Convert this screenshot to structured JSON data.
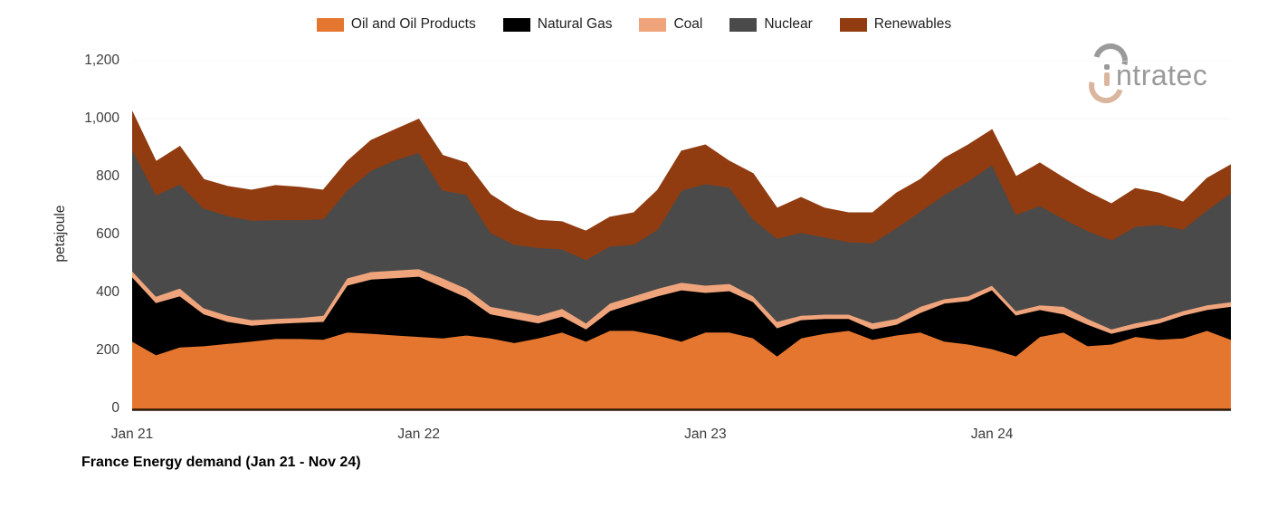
{
  "caption": "France Energy demand (Jan 21 - Nov 24)",
  "logo": {
    "text": "ntratec",
    "gray": "#9a9a9a",
    "tan": "#d9b69d"
  },
  "colors": {
    "axis_line": "#2e1809",
    "grid_line": "#f4f4f4",
    "tick_text": "#3c3c3c",
    "legend_text": "#1e1e1e"
  },
  "chart_data": {
    "type": "area",
    "stacked": true,
    "title": "France Energy demand (Jan 21 - Nov 24)",
    "xlabel": "",
    "ylabel": "petajoule",
    "ylim": [
      0,
      1200
    ],
    "grid": "faint-horizontal",
    "legend_position": "top",
    "y_ticks": [
      0,
      200,
      400,
      600,
      800,
      1000,
      1200
    ],
    "y_tick_labels": [
      "0",
      "200",
      "400",
      "600",
      "800",
      "1,000",
      "1,200"
    ],
    "x_tick_indices": [
      0,
      12,
      24,
      36
    ],
    "x_tick_labels": [
      "Jan 21",
      "Jan 22",
      "Jan 23",
      "Jan 24"
    ],
    "categories": [
      "Jan 21",
      "Feb 21",
      "Mar 21",
      "Apr 21",
      "May 21",
      "Jun 21",
      "Jul 21",
      "Aug 21",
      "Sep 21",
      "Oct 21",
      "Nov 21",
      "Dec 21",
      "Jan 22",
      "Feb 22",
      "Mar 22",
      "Apr 22",
      "May 22",
      "Jun 22",
      "Jul 22",
      "Aug 22",
      "Sep 22",
      "Oct 22",
      "Nov 22",
      "Dec 22",
      "Jan 23",
      "Feb 23",
      "Mar 23",
      "Apr 23",
      "May 23",
      "Jun 23",
      "Jul 23",
      "Aug 23",
      "Sep 23",
      "Oct 23",
      "Nov 23",
      "Dec 23",
      "Jan 24",
      "Feb 24",
      "Mar 24",
      "Apr 24",
      "May 24",
      "Jun 24",
      "Jul 24",
      "Aug 24",
      "Sep 24",
      "Oct 24",
      "Nov 24"
    ],
    "series": [
      {
        "name": "Oil and Oil Products",
        "color": "#E5762F",
        "values": [
          232,
          185,
          212,
          216,
          224,
          232,
          241,
          241,
          238,
          263,
          259,
          253,
          248,
          243,
          253,
          243,
          227,
          243,
          263,
          232,
          269,
          269,
          253,
          232,
          263,
          263,
          243,
          181,
          243,
          259,
          269,
          238,
          253,
          263,
          232,
          222,
          206,
          181,
          248,
          263,
          216,
          222,
          248,
          238,
          243,
          269,
          238
        ]
      },
      {
        "name": "Natural Gas",
        "color": "#000000",
        "values": [
          222,
          180,
          176,
          110,
          76,
          55,
          52,
          56,
          62,
          162,
          187,
          198,
          208,
          177,
          131,
          83,
          83,
          52,
          55,
          42,
          68,
          94,
          135,
          177,
          137,
          143,
          125,
          97,
          63,
          51,
          41,
          36,
          37,
          68,
          131,
          150,
          203,
          141,
          93,
          63,
          74,
          37,
          30,
          57,
          79,
          72,
          114
        ]
      },
      {
        "name": "Coal",
        "color": "#EFA47C",
        "values": [
          21,
          22,
          27,
          21,
          21,
          19,
          17,
          16,
          21,
          25,
          26,
          26,
          26,
          30,
          30,
          26,
          27,
          26,
          27,
          21,
          26,
          25,
          26,
          26,
          25,
          25,
          20,
          22,
          15,
          15,
          15,
          21,
          20,
          21,
          15,
          16,
          16,
          15,
          16,
          26,
          20,
          15,
          17,
          15,
          15,
          16,
          16
        ]
      },
      {
        "name": "Nuclear",
        "color": "#4A4A4A",
        "values": [
          419,
          350,
          359,
          344,
          344,
          343,
          341,
          338,
          333,
          303,
          349,
          380,
          401,
          303,
          324,
          255,
          229,
          234,
          205,
          218,
          197,
          178,
          204,
          318,
          350,
          332,
          265,
          287,
          286,
          266,
          250,
          276,
          313,
          328,
          360,
          396,
          416,
          332,
          343,
          302,
          303,
          307,
          333,
          324,
          281,
          328,
          375
        ]
      },
      {
        "name": "Renewables",
        "color": "#913C10",
        "values": [
          131,
          115,
          130,
          99,
          101,
          104,
          118,
          112,
          99,
          99,
          104,
          105,
          115,
          120,
          109,
          131,
          119,
          94,
          94,
          99,
          100,
          109,
          135,
          135,
          134,
          90,
          157,
          104,
          121,
          100,
          100,
          104,
          120,
          110,
          125,
          125,
          121,
          131,
          147,
          141,
          134,
          125,
          131,
          109,
          94,
          109,
          98
        ]
      }
    ]
  }
}
